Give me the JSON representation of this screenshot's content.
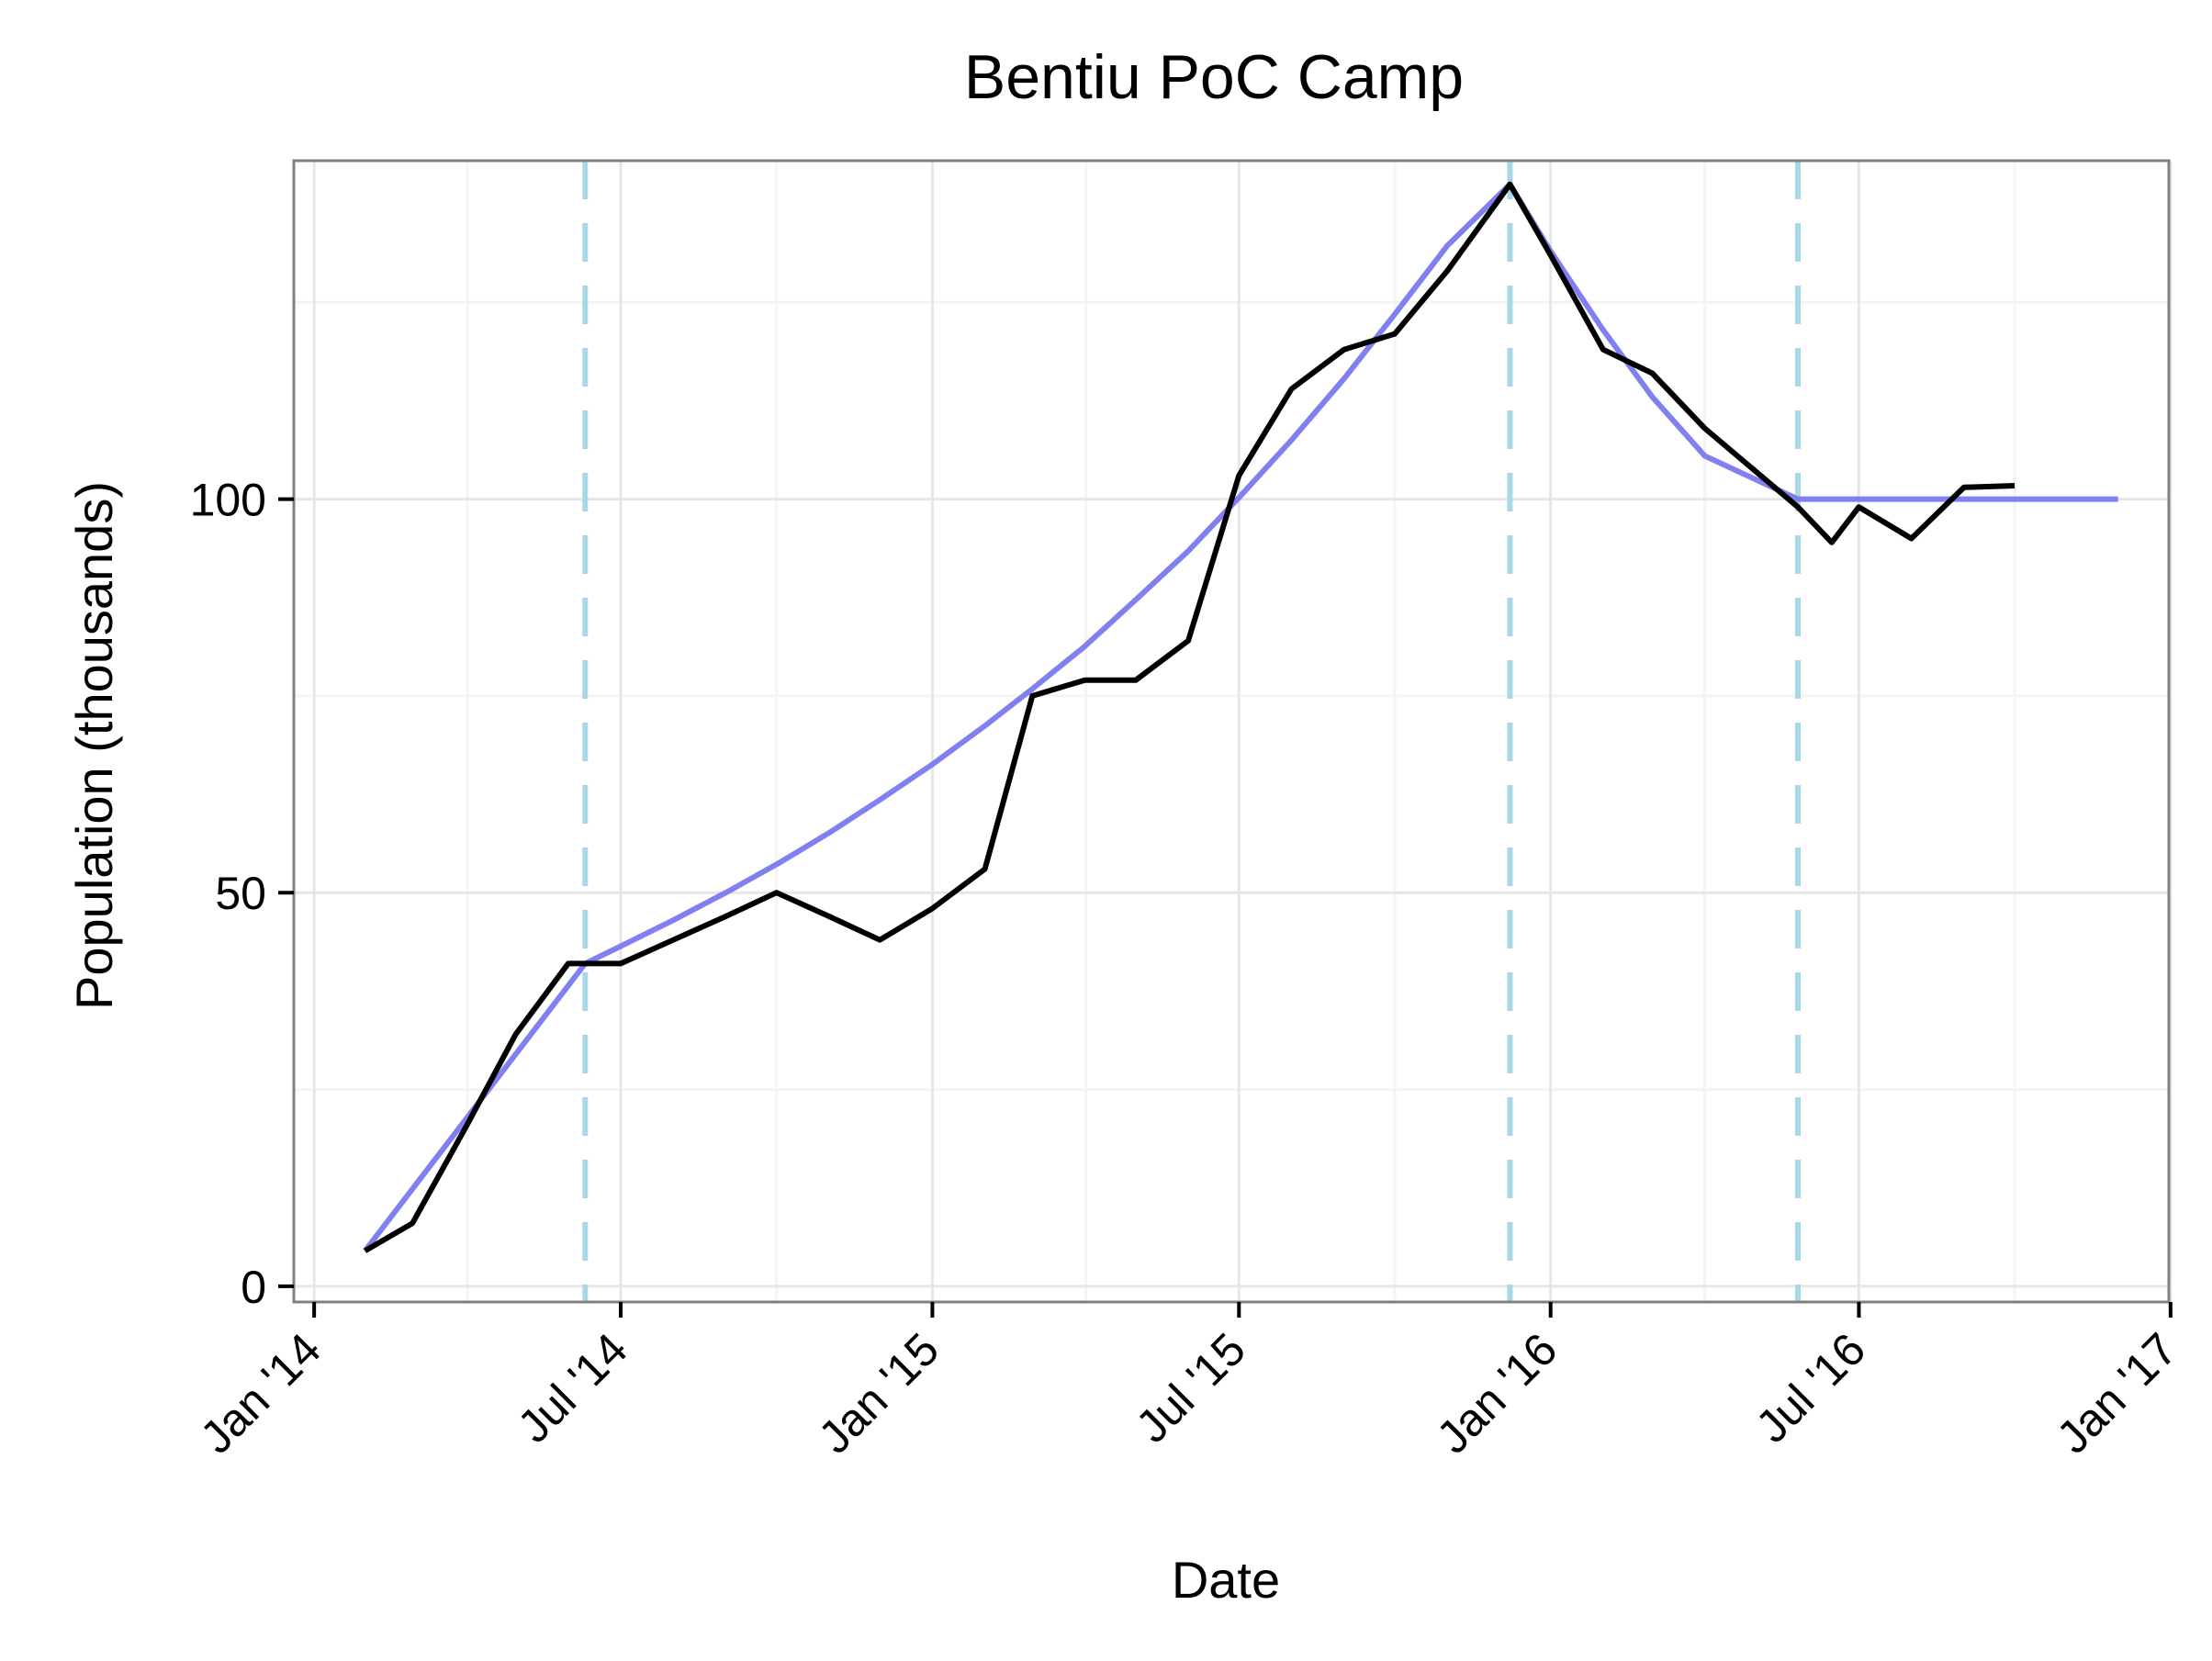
{
  "chart_data": {
    "type": "line",
    "title": "Bentiu PoC Camp",
    "xlabel": "Date",
    "ylabel": "Population (thousands)",
    "x_ticks": [
      "2014-01-01",
      "2014-07-01",
      "2015-01-01",
      "2015-07-01",
      "2016-01-01",
      "2016-07-01",
      "2017-01-01"
    ],
    "x_tick_labels": [
      "Jan '14",
      "Jul '14",
      "Jan '15",
      "Jul '15",
      "Jan '16",
      "Jul '16",
      "Jan '17"
    ],
    "y_ticks": [
      0,
      50,
      100
    ],
    "y_tick_labels": [
      "0",
      "50",
      "100"
    ],
    "xlim": [
      "2013-12-20",
      "2016-12-31"
    ],
    "ylim": [
      -2,
      143
    ],
    "grid": true,
    "legend": "none",
    "colors": {
      "observed": "#000000",
      "model": "#8080f0",
      "interventions": "#a8d8e6",
      "grid_major": "#e6e6e6",
      "grid_minor": "#f4f4f4",
      "panel_border": "#808080"
    },
    "vertical_lines": [
      "2014-06-10",
      "2015-12-08",
      "2016-05-26"
    ],
    "series": [
      {
        "role": "observed",
        "x": [
          "2014-01-31",
          "2014-02-28",
          "2014-03-31",
          "2014-04-30",
          "2014-05-31",
          "2014-06-10",
          "2014-07-01",
          "2014-08-01",
          "2014-09-01",
          "2014-10-01",
          "2014-11-01",
          "2014-12-01",
          "2015-01-01",
          "2015-02-01",
          "2015-03-01",
          "2015-04-01",
          "2015-05-01",
          "2015-06-01",
          "2015-07-01",
          "2015-08-01",
          "2015-09-01",
          "2015-10-01",
          "2015-11-01",
          "2015-12-08",
          "2016-01-01",
          "2016-02-01",
          "2016-03-01",
          "2016-04-01",
          "2016-05-26",
          "2016-06-15",
          "2016-07-01",
          "2016-08-01",
          "2016-09-01",
          "2016-10-01"
        ],
        "y": [
          4.5,
          8,
          20,
          32,
          41,
          41,
          41,
          44,
          47,
          50,
          47,
          44,
          48,
          53,
          75,
          77,
          77,
          82,
          103,
          114,
          119,
          121,
          129,
          140,
          131,
          119,
          116,
          109,
          99,
          94.5,
          99,
          95,
          101.5,
          101.7
        ]
      },
      {
        "role": "model",
        "x": [
          "2014-01-31",
          "2014-06-10",
          "2014-07-01",
          "2014-08-01",
          "2014-09-01",
          "2014-10-01",
          "2014-11-01",
          "2014-12-01",
          "2015-01-01",
          "2015-02-01",
          "2015-03-01",
          "2015-04-01",
          "2015-05-01",
          "2015-06-01",
          "2015-07-01",
          "2015-08-01",
          "2015-09-01",
          "2015-10-01",
          "2015-11-01",
          "2015-12-08",
          "2016-01-01",
          "2016-02-01",
          "2016-03-01",
          "2016-04-01",
          "2016-05-26",
          "2016-06-15",
          "2016-07-01",
          "2016-08-01",
          "2016-09-01",
          "2016-10-01",
          "2016-11-01",
          "2016-12-01"
        ],
        "y": [
          4.5,
          41,
          43.2,
          46.5,
          50,
          53.6,
          57.6,
          61.8,
          66.3,
          71.2,
          75.9,
          81.3,
          87.2,
          93.4,
          100.2,
          107.5,
          115.3,
          123.5,
          132.2,
          140,
          131.5,
          121.5,
          113,
          105.5,
          100,
          100,
          100,
          100,
          100,
          100,
          100,
          100
        ]
      }
    ]
  }
}
